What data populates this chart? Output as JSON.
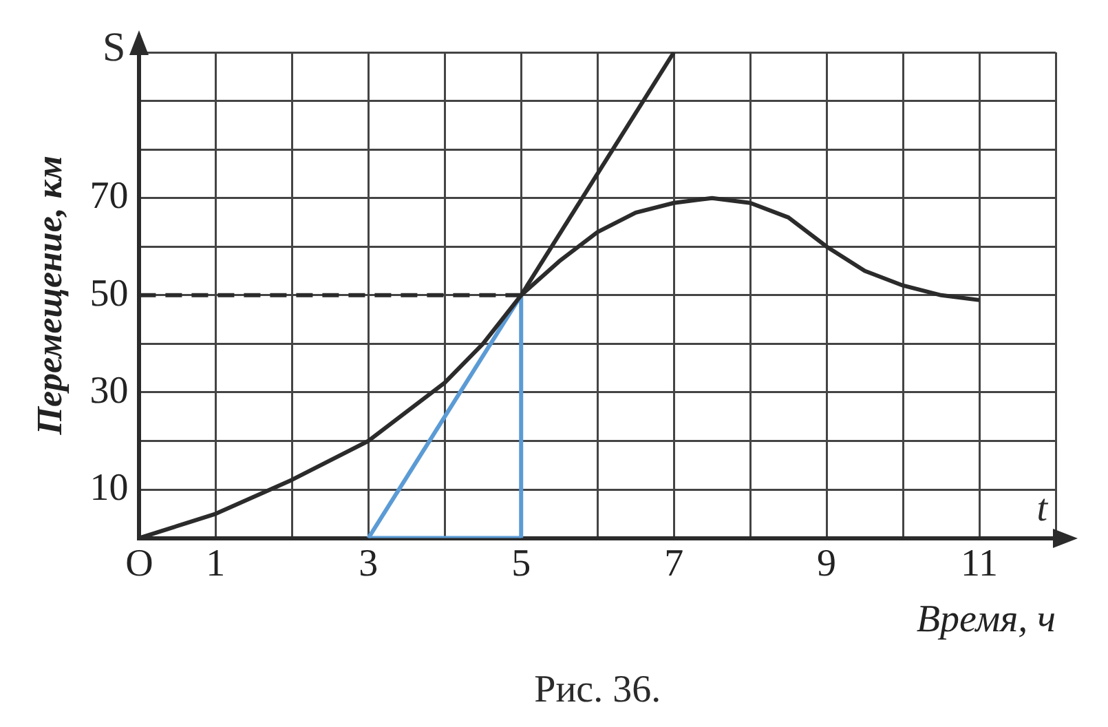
{
  "chart_data": {
    "type": "line",
    "ylabel": "Перемещение, км",
    "xlabel": "Время, ч",
    "annotations": [
      "S",
      "t",
      "Рис. 36."
    ],
    "xlim": [
      0,
      12
    ],
    "ylim": [
      0,
      100
    ],
    "xticks": [
      {
        "value": 0,
        "label": "O"
      },
      1,
      {
        "value": 2,
        "label": null
      },
      3,
      {
        "value": 4,
        "label": null
      },
      5,
      {
        "value": 6,
        "label": null
      },
      7,
      {
        "value": 8,
        "label": null
      },
      9,
      {
        "value": 10,
        "label": null
      },
      11,
      {
        "value": 12,
        "label": null
      }
    ],
    "yticks": [
      {
        "value": 0,
        "label": null
      },
      10,
      {
        "value": 20,
        "label": null
      },
      30,
      {
        "value": 40,
        "label": null
      },
      50,
      {
        "value": 60,
        "label": null
      },
      70,
      {
        "value": 80,
        "label": null
      },
      {
        "value": 90,
        "label": null
      },
      {
        "value": 100,
        "label": null
      }
    ],
    "grid": true,
    "legend": false,
    "marker": "none",
    "series": [
      {
        "color": "#2b2b2b",
        "x": [
          0,
          1,
          2,
          3,
          4,
          4.5,
          5,
          5.5,
          6,
          6.5,
          7,
          7.5,
          8,
          8.5,
          9,
          9.5,
          10,
          10.5,
          11
        ],
        "values": [
          0,
          5,
          12,
          20,
          32,
          40,
          50,
          57,
          63,
          67,
          69,
          70,
          69,
          66,
          60,
          55,
          52,
          50,
          49
        ]
      },
      {
        "color": "#2b2b2b",
        "x": [
          5,
          7
        ],
        "values": [
          50,
          100
        ]
      },
      {
        "color": "#2b2b2b",
        "line_style": "dashed",
        "x": [
          0,
          5
        ],
        "values": [
          50,
          50
        ]
      },
      {
        "color": "#5b9bd5",
        "x": [
          3,
          5
        ],
        "values": [
          0,
          50
        ]
      },
      {
        "color": "#5b9bd5",
        "x": [
          3,
          5
        ],
        "values": [
          0,
          0
        ]
      },
      {
        "color": "#5b9bd5",
        "x": [
          5,
          5
        ],
        "values": [
          0,
          50
        ]
      }
    ]
  }
}
